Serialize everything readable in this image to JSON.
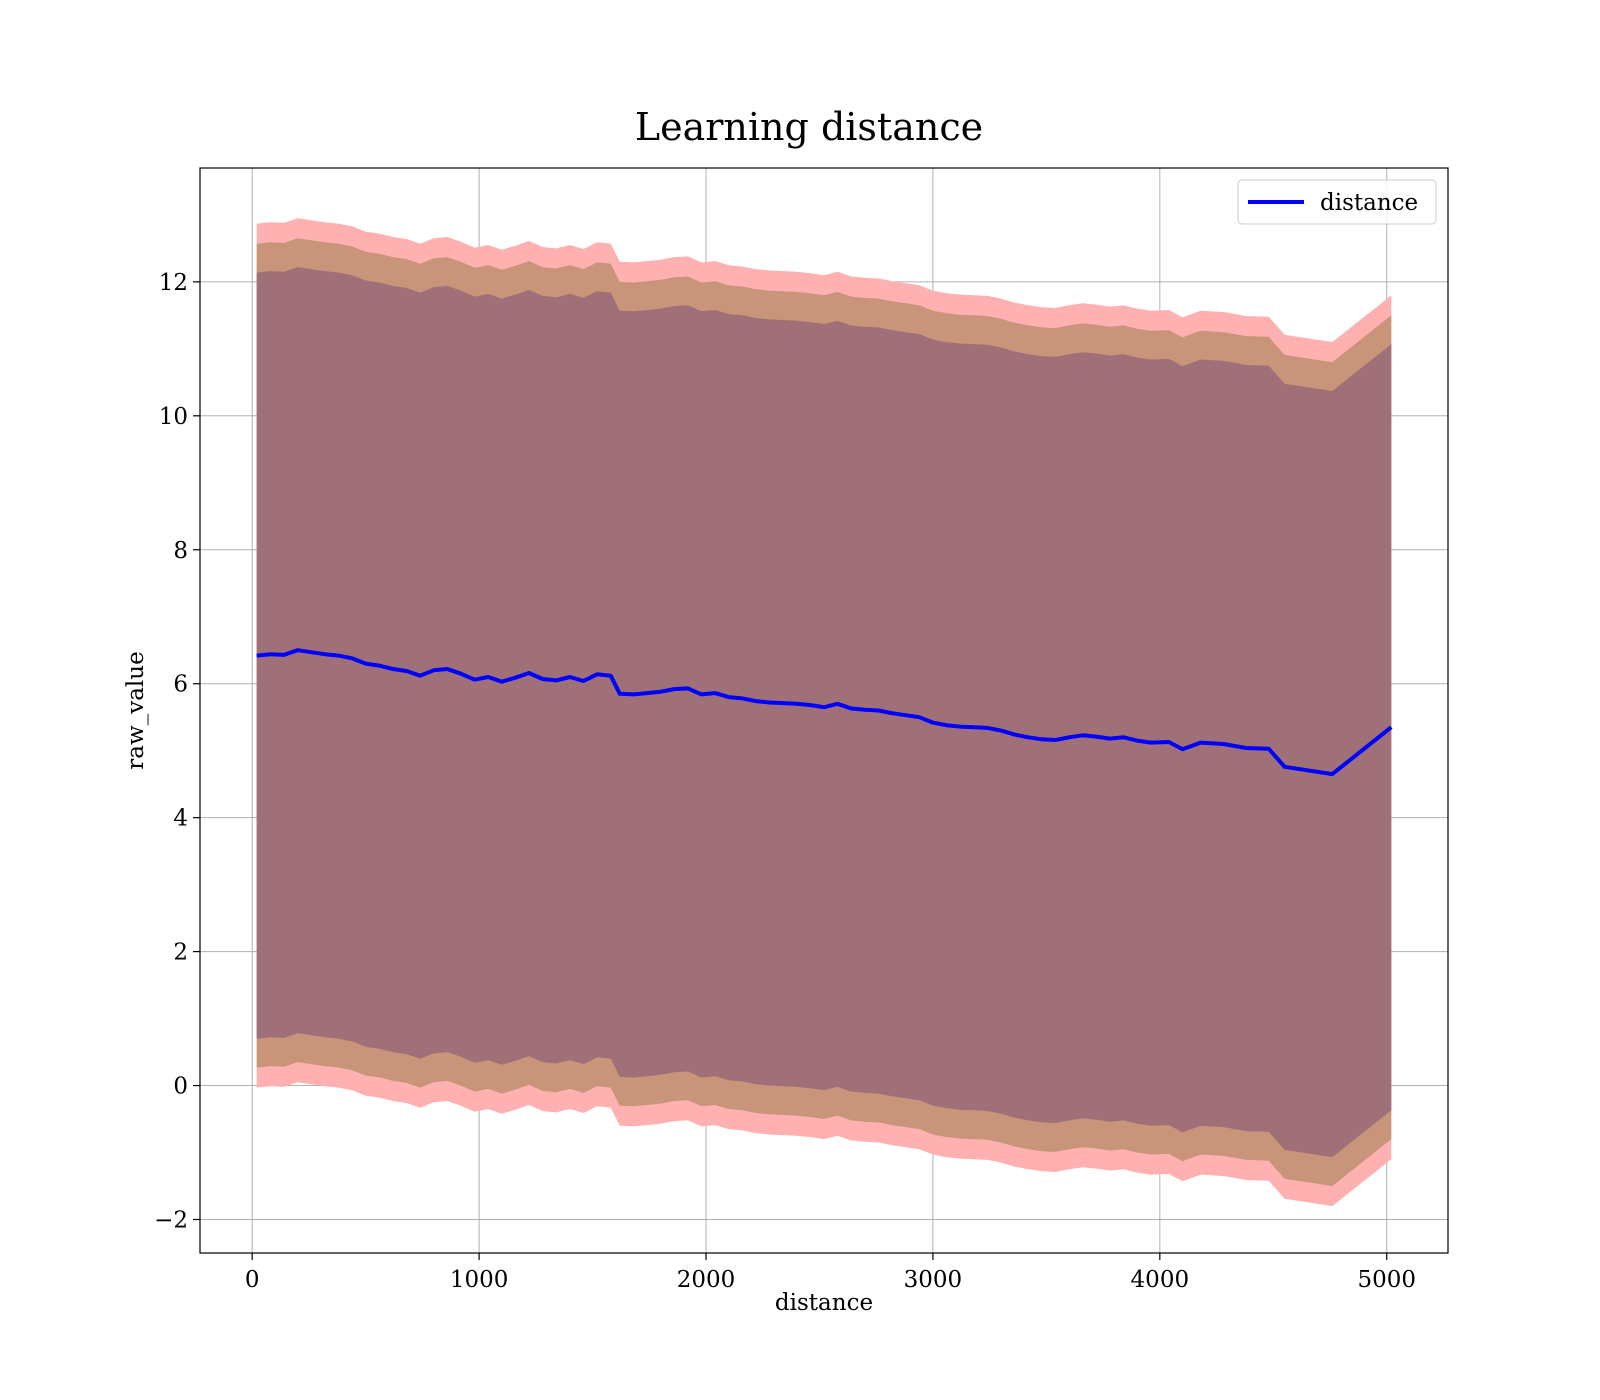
{
  "chart_data": {
    "type": "area",
    "title": "Learning distance",
    "xlabel": "distance",
    "ylabel": "raw_value",
    "xlim": [
      -230,
      5270
    ],
    "ylim": [
      -2.5,
      13.7
    ],
    "xticks": [
      0,
      1000,
      2000,
      3000,
      4000,
      5000
    ],
    "yticks": [
      -2,
      0,
      2,
      4,
      6,
      8,
      10,
      12
    ],
    "xtick_labels": [
      "0",
      "1000",
      "2000",
      "3000",
      "4000",
      "5000"
    ],
    "ytick_labels": [
      "−2",
      "0",
      "2",
      "4",
      "6",
      "8",
      "10",
      "12"
    ],
    "grid": true,
    "legend": {
      "position": "top-right",
      "entries": [
        "distance"
      ]
    },
    "colors": {
      "line": "#0000ff",
      "band_outer": "#ffb0b0",
      "band_middle": "#c8957a",
      "band_inner": "#a07078"
    },
    "x": [
      20,
      80,
      140,
      200,
      260,
      320,
      380,
      440,
      500,
      560,
      620,
      680,
      740,
      800,
      860,
      920,
      980,
      1040,
      1100,
      1160,
      1220,
      1280,
      1340,
      1400,
      1460,
      1520,
      1580,
      1620,
      1680,
      1740,
      1800,
      1860,
      1920,
      1980,
      2040,
      2100,
      2160,
      2220,
      2280,
      2340,
      2400,
      2460,
      2520,
      2580,
      2640,
      2700,
      2760,
      2820,
      2880,
      2940,
      3000,
      3060,
      3120,
      3180,
      3240,
      3300,
      3360,
      3420,
      3480,
      3540,
      3600,
      3660,
      3720,
      3780,
      3840,
      3900,
      3960,
      4040,
      4100,
      4180,
      4280,
      4380,
      4480,
      4550,
      4760,
      5020
    ],
    "series": [
      {
        "name": "distance",
        "values": [
          6.42,
          6.44,
          6.43,
          6.5,
          6.47,
          6.44,
          6.42,
          6.38,
          6.3,
          6.27,
          6.22,
          6.19,
          6.12,
          6.2,
          6.22,
          6.15,
          6.06,
          6.1,
          6.03,
          6.09,
          6.16,
          6.07,
          6.05,
          6.1,
          6.04,
          6.14,
          6.12,
          5.85,
          5.84,
          5.86,
          5.88,
          5.92,
          5.93,
          5.84,
          5.86,
          5.8,
          5.78,
          5.74,
          5.72,
          5.71,
          5.7,
          5.68,
          5.65,
          5.7,
          5.63,
          5.61,
          5.6,
          5.56,
          5.53,
          5.5,
          5.42,
          5.38,
          5.36,
          5.35,
          5.34,
          5.3,
          5.24,
          5.2,
          5.17,
          5.16,
          5.2,
          5.23,
          5.21,
          5.18,
          5.2,
          5.15,
          5.12,
          5.13,
          5.02,
          5.12,
          5.1,
          5.04,
          5.03,
          4.76,
          4.65,
          5.35
        ]
      }
    ],
    "bands": [
      {
        "level": "outer",
        "halfwidth": 6.45
      },
      {
        "level": "middle",
        "halfwidth": 6.15
      },
      {
        "level": "inner",
        "halfwidth": 5.72
      }
    ]
  }
}
